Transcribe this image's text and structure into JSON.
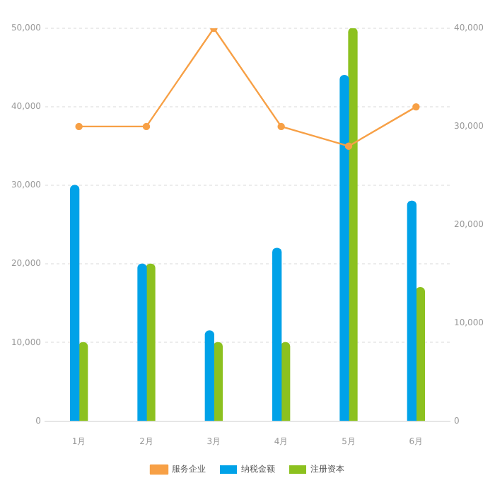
{
  "chart_data": {
    "type": "bar",
    "categories": [
      "1月",
      "2月",
      "3月",
      "4月",
      "5月",
      "6月"
    ],
    "series": [
      {
        "name": "纳税金额",
        "color": "#00a2e8",
        "values": [
          30000,
          20000,
          11500,
          22000,
          44000,
          28000
        ]
      },
      {
        "name": "注册资本",
        "color": "#8cc11f",
        "values": [
          10000,
          20000,
          10000,
          10000,
          50000,
          17000
        ]
      },
      {
        "name": "服务企业",
        "type": "line",
        "axis": "y2",
        "color": "#f7a046",
        "values": [
          30000,
          30000,
          40000,
          30000,
          28000,
          32000
        ]
      }
    ],
    "ylim": [
      0,
      50000
    ],
    "yticks": [
      {
        "value": 0,
        "label": "0"
      },
      {
        "value": 10000,
        "label": "10,000"
      },
      {
        "value": 20000,
        "label": "20,000"
      },
      {
        "value": 30000,
        "label": "30,000"
      },
      {
        "value": 40000,
        "label": "40,000"
      },
      {
        "value": 50000,
        "label": "50,000"
      }
    ],
    "y2lim": [
      0,
      40000
    ],
    "y2ticks": [
      {
        "value": 0,
        "label": "0"
      },
      {
        "value": 10000,
        "label": "10,000"
      },
      {
        "value": 20000,
        "label": "20,000"
      },
      {
        "value": 30000,
        "label": "30,000"
      },
      {
        "value": 40000,
        "label": "40,000"
      }
    ],
    "grid": "y",
    "legend": "bottom",
    "marker": "circle"
  }
}
